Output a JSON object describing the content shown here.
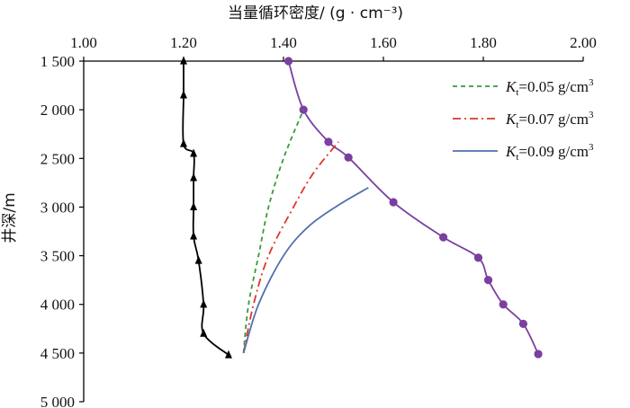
{
  "chart_data": {
    "type": "line",
    "title": "",
    "xlabel": "当量循环密度/ (g · cm⁻³)",
    "ylabel": "井深/m",
    "xlim": [
      1.0,
      2.0
    ],
    "ylim": [
      1500,
      5000
    ],
    "x_axis_position": "top",
    "y_axis_inverted": true,
    "x_ticks": [
      1.0,
      1.2,
      1.4,
      1.6,
      1.8,
      2.0
    ],
    "x_tick_labels": [
      "1.00",
      "1.20",
      "1.40",
      "1.60",
      "1.80",
      "2.00"
    ],
    "y_ticks": [
      1500,
      2000,
      2500,
      3000,
      3500,
      4000,
      4500,
      5000
    ],
    "y_tick_labels": [
      "1 500",
      "2 000",
      "2 500",
      "3 000",
      "3 500",
      "4 000",
      "4 500",
      "5 000"
    ],
    "grid": false,
    "legend_position": "top-right",
    "legend": [
      {
        "prefix": "K",
        "sub": "t",
        "suffix": "=0.05 g/cm",
        "sup": "3",
        "color": "#3a9a3a",
        "dash": "5,4"
      },
      {
        "prefix": "K",
        "sub": "t",
        "suffix": "=0.07 g/cm",
        "sup": "3",
        "color": "#e0352b",
        "dash": "9,4,2,4"
      },
      {
        "prefix": "K",
        "sub": "t",
        "suffix": "=0.09 g/cm",
        "sup": "3",
        "color": "#5070b0",
        "dash": ""
      }
    ],
    "series": [
      {
        "role": "black-triangles",
        "color": "#000000",
        "marker": "triangle",
        "points": [
          [
            1.2,
            1500
          ],
          [
            1.2,
            1850
          ],
          [
            1.2,
            2350
          ],
          [
            1.22,
            2450
          ],
          [
            1.22,
            2700
          ],
          [
            1.22,
            3000
          ],
          [
            1.22,
            3300
          ],
          [
            1.23,
            3550
          ],
          [
            1.24,
            4000
          ],
          [
            1.24,
            4300
          ],
          [
            1.29,
            4520
          ]
        ]
      },
      {
        "role": "purple-circles",
        "color": "#7b3fa0",
        "marker": "circle",
        "points": [
          [
            1.41,
            1500
          ],
          [
            1.44,
            2000
          ],
          [
            1.49,
            2330
          ],
          [
            1.53,
            2490
          ],
          [
            1.62,
            2950
          ],
          [
            1.72,
            3310
          ],
          [
            1.79,
            3520
          ],
          [
            1.81,
            3750
          ],
          [
            1.84,
            4000
          ],
          [
            1.88,
            4200
          ],
          [
            1.91,
            4510
          ]
        ]
      },
      {
        "role": "kt-0.05",
        "color": "#3a9a3a",
        "dash": "5,4",
        "marker": "none",
        "points": [
          [
            1.32,
            4500
          ],
          [
            1.33,
            4000
          ],
          [
            1.35,
            3500
          ],
          [
            1.37,
            3000
          ],
          [
            1.4,
            2500
          ],
          [
            1.44,
            2000
          ]
        ]
      },
      {
        "role": "kt-0.07",
        "color": "#e0352b",
        "dash": "9,4,2,4",
        "marker": "none",
        "points": [
          [
            1.32,
            4500
          ],
          [
            1.34,
            4000
          ],
          [
            1.37,
            3500
          ],
          [
            1.42,
            3000
          ],
          [
            1.46,
            2650
          ],
          [
            1.51,
            2330
          ]
        ]
      },
      {
        "role": "kt-0.09",
        "color": "#5070b0",
        "dash": "",
        "marker": "none",
        "points": [
          [
            1.32,
            4500
          ],
          [
            1.35,
            4000
          ],
          [
            1.4,
            3500
          ],
          [
            1.45,
            3200
          ],
          [
            1.51,
            2980
          ],
          [
            1.57,
            2800
          ]
        ]
      }
    ]
  }
}
